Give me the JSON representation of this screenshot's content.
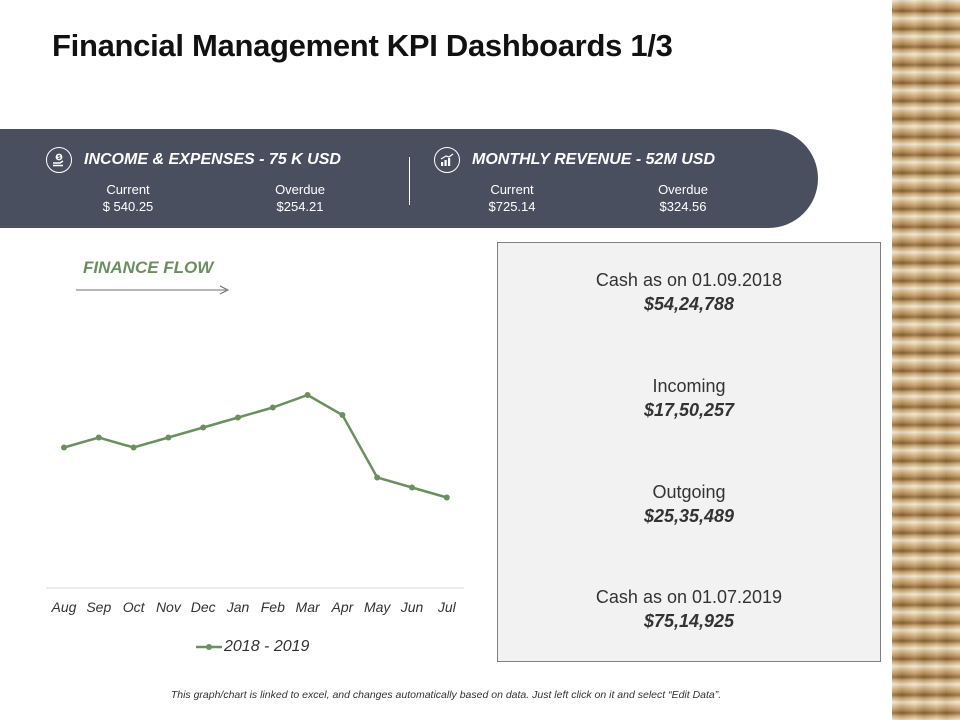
{
  "title": "Financial Management KPI Dashboards 1/3",
  "kpis": [
    {
      "title": "INCOME & EXPENSES - 75 K USD",
      "icon": "money-hand-icon",
      "current_label": "Current",
      "current_value": "$ 540.25",
      "overdue_label": "Overdue",
      "overdue_value": "$254.21"
    },
    {
      "title": "MONTHLY REVENUE - 52M USD",
      "icon": "bar-growth-icon",
      "current_label": "Current",
      "current_value": "$725.14",
      "overdue_label": "Overdue",
      "overdue_value": "$324.56"
    }
  ],
  "flow_title": "FINANCE FLOW",
  "chart_data": {
    "type": "line",
    "title": "FINANCE FLOW",
    "categories": [
      "Aug",
      "Sep",
      "Oct",
      "Nov",
      "Dec",
      "Jan",
      "Feb",
      "Mar",
      "Apr",
      "May",
      "Jun",
      "Jul"
    ],
    "series": [
      {
        "name": "2018 - 2019",
        "values": [
          49,
          53,
          49,
          53,
          57,
          61,
          65,
          70,
          62,
          37,
          33,
          29
        ]
      }
    ],
    "ylim": [
      0,
      100
    ],
    "xlabel": "",
    "ylabel": "",
    "grid": false,
    "legend": "bottom",
    "colors": {
      "line": "#6b8f5e",
      "axis": "#d9d9d9",
      "tick": "#333333"
    }
  },
  "stats": [
    {
      "label": "Cash as on 01.09.2018",
      "value": "$54,24,788"
    },
    {
      "label": "Incoming",
      "value": "$17,50,257"
    },
    {
      "label": "Outgoing",
      "value": "$25,35,489"
    },
    {
      "label": "Cash as on 01.07.2019",
      "value": "$75,14,925"
    }
  ],
  "footer": "This graph/chart is linked to excel, and changes automatically based on data. Just left click on it and select “Edit Data”.",
  "colors": {
    "banner": "#4a4f5f",
    "accent": "#6b8f5e",
    "panel": "#f2f2f2"
  }
}
